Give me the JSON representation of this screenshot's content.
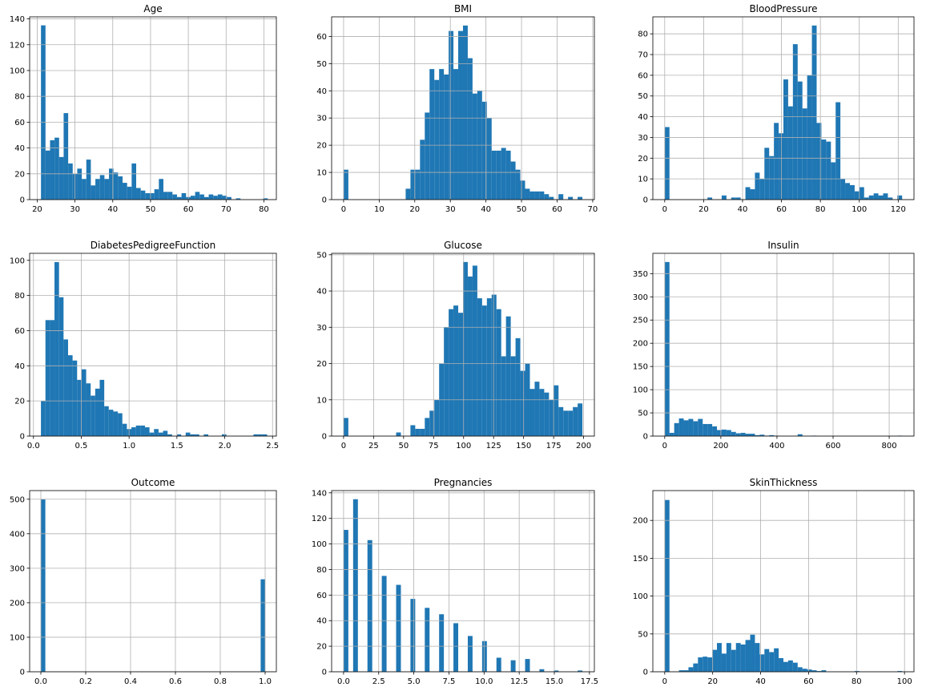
{
  "colors": {
    "bar": "#1f77b4",
    "grid": "#b0b0b0",
    "axis": "#000000"
  },
  "chart_data": [
    {
      "type": "bar",
      "title": "Age",
      "grid": true,
      "xlim": [
        18,
        83.3
      ],
      "ylim": [
        0,
        141.6
      ],
      "xticks": [
        20,
        30,
        40,
        50,
        60,
        70,
        80
      ],
      "yticks": [
        0,
        20,
        40,
        60,
        80,
        100,
        120,
        140
      ],
      "bin_start": 21,
      "bin_width": 1.2,
      "values": [
        135,
        38,
        46,
        48,
        33,
        67,
        28,
        20,
        24,
        16,
        31,
        11,
        16,
        19,
        16,
        24,
        21,
        18,
        13,
        10,
        28,
        9,
        7,
        5,
        5,
        8,
        16,
        6,
        6,
        4,
        2,
        5,
        2,
        3,
        6,
        4,
        2,
        4,
        3,
        4,
        3,
        2,
        0,
        1,
        0,
        0,
        0,
        0,
        0,
        1
      ]
    },
    {
      "type": "bar",
      "title": "BMI",
      "grid": true,
      "xlim": [
        -3.36,
        70.47
      ],
      "ylim": [
        0,
        67.2
      ],
      "xticks": [
        0,
        10,
        20,
        30,
        40,
        50,
        60,
        70
      ],
      "yticks": [
        0,
        10,
        20,
        30,
        40,
        50,
        60
      ],
      "bin_start": 0,
      "bin_width": 1.342,
      "values": [
        11,
        0,
        0,
        0,
        0,
        0,
        0,
        0,
        0,
        0,
        0,
        0,
        0,
        4,
        11,
        11,
        22,
        32,
        48,
        44,
        48,
        46,
        62,
        48,
        62,
        64,
        52,
        39,
        40,
        36,
        30,
        18,
        18,
        19,
        18,
        14,
        11,
        7,
        4,
        3,
        3,
        3,
        2,
        1,
        0,
        2,
        0,
        1,
        0,
        1
      ]
    },
    {
      "type": "bar",
      "title": "BloodPressure",
      "grid": true,
      "xlim": [
        -6.1,
        128.1
      ],
      "ylim": [
        0,
        88.2
      ],
      "xticks": [
        0,
        20,
        40,
        60,
        80,
        100,
        120
      ],
      "yticks": [
        0,
        10,
        20,
        30,
        40,
        50,
        60,
        70,
        80
      ],
      "bin_start": 0,
      "bin_width": 2.44,
      "values": [
        35,
        0,
        0,
        0,
        0,
        0,
        0,
        0,
        0,
        1,
        0,
        0,
        2,
        0,
        1,
        1,
        0,
        6,
        5,
        13,
        10,
        25,
        21,
        37,
        32,
        58,
        45,
        75,
        57,
        44,
        60,
        84,
        37,
        29,
        28,
        18,
        47,
        10,
        8,
        7,
        4,
        6,
        1,
        2,
        3,
        2,
        3,
        1,
        0,
        2
      ]
    },
    {
      "type": "bar",
      "title": "DiabetesPedigreeFunction",
      "grid": true,
      "xlim": [
        -0.04,
        2.54
      ],
      "ylim": [
        0,
        104
      ],
      "xticks": [
        0.0,
        0.5,
        1.0,
        1.5,
        2.0,
        2.5
      ],
      "xtick_labels": [
        "0.0",
        "0.5",
        "1.0",
        "1.5",
        "2.0",
        "2.5"
      ],
      "yticks": [
        0,
        20,
        40,
        60,
        80,
        100
      ],
      "bin_start": 0.078,
      "bin_width": 0.0473,
      "values": [
        20,
        66,
        66,
        99,
        79,
        55,
        46,
        43,
        32,
        38,
        30,
        23,
        27,
        32,
        17,
        15,
        14,
        13,
        7,
        4,
        5,
        6,
        6,
        5,
        2,
        4,
        2,
        3,
        1,
        0,
        1,
        0,
        2,
        1,
        1,
        0,
        1,
        0,
        0,
        0,
        1,
        0,
        0,
        0,
        0,
        0,
        0,
        1,
        1,
        1
      ]
    },
    {
      "type": "bar",
      "title": "Glucose",
      "grid": true,
      "xlim": [
        -9.95,
        208.95
      ],
      "ylim": [
        0,
        50.4
      ],
      "xticks": [
        0,
        25,
        50,
        75,
        100,
        125,
        150,
        175,
        200
      ],
      "yticks": [
        0,
        10,
        20,
        30,
        40,
        50
      ],
      "bin_start": 0,
      "bin_width": 3.98,
      "values": [
        5,
        0,
        0,
        0,
        0,
        0,
        0,
        0,
        0,
        0,
        0,
        1,
        0,
        0,
        3,
        2,
        2,
        5,
        7,
        10,
        20,
        30,
        35,
        36,
        34,
        48,
        44,
        47,
        38,
        36,
        38,
        39,
        35,
        22,
        33,
        22,
        27,
        18,
        20,
        13,
        15,
        13,
        12,
        10,
        14,
        8,
        7,
        7,
        8,
        9
      ]
    },
    {
      "type": "bar",
      "title": "Insulin",
      "grid": true,
      "xlim": [
        -42.3,
        888.3
      ],
      "ylim": [
        0,
        393.75
      ],
      "xticks": [
        0,
        200,
        400,
        600,
        800
      ],
      "yticks": [
        0,
        50,
        100,
        150,
        200,
        250,
        300,
        350
      ],
      "bin_start": 0,
      "bin_width": 16.92,
      "values": [
        375,
        7,
        28,
        38,
        34,
        37,
        32,
        37,
        26,
        26,
        21,
        13,
        14,
        13,
        9,
        6,
        7,
        5,
        5,
        2,
        3,
        1,
        2,
        1,
        0,
        0,
        0,
        0,
        4,
        0,
        0,
        1,
        0,
        0,
        0,
        0,
        0,
        0,
        0,
        0,
        0,
        0,
        0,
        0,
        0,
        0,
        0,
        0,
        0,
        1
      ]
    },
    {
      "type": "bar",
      "title": "Outcome",
      "grid": true,
      "xlim": [
        -0.05,
        1.05
      ],
      "ylim": [
        0,
        525
      ],
      "xticks": [
        0.0,
        0.2,
        0.4,
        0.6,
        0.8,
        1.0
      ],
      "xtick_labels": [
        "0.0",
        "0.2",
        "0.4",
        "0.6",
        "0.8",
        "1.0"
      ],
      "yticks": [
        0,
        100,
        200,
        300,
        400,
        500
      ],
      "bin_start": 0,
      "bin_width": 0.02,
      "bars": [
        {
          "x": 0.0,
          "value": 500
        },
        {
          "x": 0.98,
          "value": 268
        }
      ]
    },
    {
      "type": "bar",
      "title": "Pregnancies",
      "grid": true,
      "xlim": [
        -0.85,
        17.85
      ],
      "ylim": [
        0,
        141.75
      ],
      "xticks": [
        0.0,
        2.5,
        5.0,
        7.5,
        10.0,
        12.5,
        15.0,
        17.5
      ],
      "xtick_labels": [
        "0.0",
        "2.5",
        "5.0",
        "7.5",
        "10.0",
        "12.5",
        "15.0",
        "17.5"
      ],
      "yticks": [
        0,
        20,
        40,
        60,
        80,
        100,
        120,
        140
      ],
      "bin_start": 0,
      "bin_width": 0.34,
      "bars": [
        {
          "x": 0.0,
          "value": 111
        },
        {
          "x": 0.68,
          "value": 135
        },
        {
          "x": 1.7,
          "value": 103
        },
        {
          "x": 2.72,
          "value": 75
        },
        {
          "x": 3.74,
          "value": 68
        },
        {
          "x": 4.76,
          "value": 57
        },
        {
          "x": 5.78,
          "value": 50
        },
        {
          "x": 6.8,
          "value": 45
        },
        {
          "x": 7.82,
          "value": 38
        },
        {
          "x": 8.84,
          "value": 28
        },
        {
          "x": 9.86,
          "value": 24
        },
        {
          "x": 10.88,
          "value": 11
        },
        {
          "x": 11.9,
          "value": 9
        },
        {
          "x": 12.92,
          "value": 10
        },
        {
          "x": 13.94,
          "value": 2
        },
        {
          "x": 14.96,
          "value": 1
        },
        {
          "x": 16.66,
          "value": 1
        }
      ]
    },
    {
      "type": "bar",
      "title": "SkinThickness",
      "grid": true,
      "xlim": [
        -4.95,
        103.95
      ],
      "ylim": [
        0,
        239.4
      ],
      "xticks": [
        0,
        20,
        40,
        60,
        80,
        100
      ],
      "yticks": [
        0,
        50,
        100,
        150,
        200
      ],
      "bin_start": 0,
      "bin_width": 1.98,
      "values": [
        227,
        0,
        0,
        2,
        2,
        6,
        11,
        19,
        20,
        19,
        29,
        38,
        24,
        38,
        29,
        38,
        36,
        42,
        49,
        38,
        23,
        30,
        26,
        31,
        18,
        13,
        15,
        12,
        6,
        4,
        3,
        2,
        1,
        2,
        0,
        0,
        0,
        0,
        0,
        0,
        1,
        0,
        0,
        0,
        0,
        0,
        0,
        0,
        0,
        1
      ]
    }
  ]
}
